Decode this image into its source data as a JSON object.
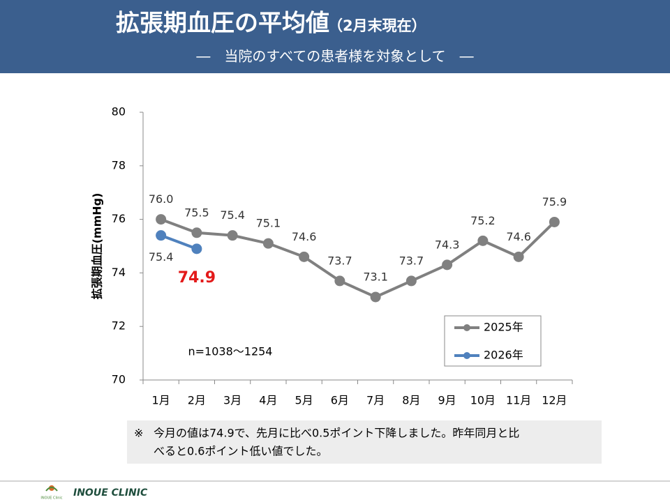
{
  "chart_data": {
    "type": "line",
    "title": "拡張期血圧の平均値",
    "title_note": "（2月末現在）",
    "subtitle": "―　当院のすべての患者様を対象として　―",
    "y_label": "拡張期血圧(mmHg)",
    "categories": [
      "1月",
      "2月",
      "3月",
      "4月",
      "5月",
      "6月",
      "7月",
      "8月",
      "9月",
      "10月",
      "11月",
      "12月"
    ],
    "series": [
      {
        "name": "2025年",
        "color": "#808080",
        "values": [
          76.0,
          75.5,
          75.4,
          75.1,
          74.6,
          73.7,
          73.1,
          73.7,
          74.3,
          75.2,
          74.6,
          75.9
        ],
        "value_labels": [
          "76.0",
          "75.5",
          "75.4",
          "75.1",
          "74.6",
          "73.7",
          "73.1",
          "73.7",
          "74.3",
          "75.2",
          "74.6",
          "75.9"
        ]
      },
      {
        "name": "2026年",
        "color": "#4f81bd",
        "values": [
          75.4,
          74.9,
          null,
          null,
          null,
          null,
          null,
          null,
          null,
          null,
          null,
          null
        ],
        "value_labels": [
          "75.4",
          "74.9",
          null,
          null,
          null,
          null,
          null,
          null,
          null,
          null,
          null,
          null
        ]
      }
    ],
    "ylim": [
      70,
      80
    ],
    "yticks": [
      70,
      72,
      74,
      76,
      78,
      80
    ],
    "grid": false,
    "legend": "lower right",
    "annotation": "n=1038～1254",
    "note": {
      "mark": "※",
      "lines": [
        "今月の値は74.9で、先月に比べ0.5ポイント下降しました。昨年同月と比",
        "べると0.6ポイント低い値でした。"
      ]
    }
  },
  "footer": {
    "clinic": "INOUE CLINIC",
    "logo_text": "INOUE Clinic"
  }
}
